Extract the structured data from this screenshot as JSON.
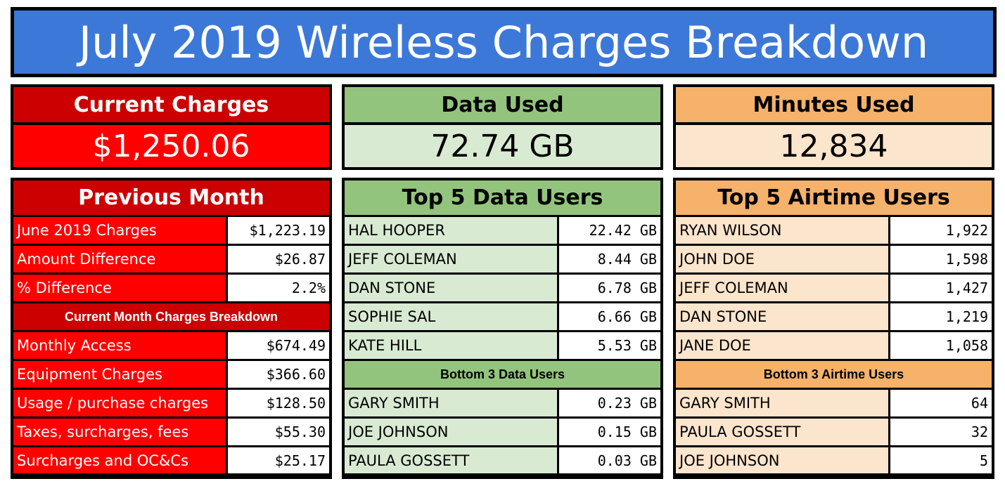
{
  "title": "July 2019 Wireless Charges Breakdown",
  "colors": {
    "title_bg": "#3c78d8",
    "red_header": "#cc0000",
    "red_value": "#ff0000",
    "green_header": "#93c47d",
    "green_value": "#d9ead3",
    "orange_header": "#f6b26b",
    "orange_value": "#fce5cd"
  },
  "kpis": {
    "current_charges": {
      "label": "Current Charges",
      "value": "$1,250.06"
    },
    "data_used": {
      "label": "Data Used",
      "value": "72.74 GB"
    },
    "minutes_used": {
      "label": "Minutes Used",
      "value": "12,834"
    }
  },
  "previous_month": {
    "title": "Previous Month",
    "rows": [
      {
        "label": "June 2019 Charges",
        "value": "$1,223.19"
      },
      {
        "label": "Amount Difference",
        "value": "$26.87"
      },
      {
        "label": "% Difference",
        "value": "2.2%"
      }
    ],
    "breakdown_title": "Current Month Charges Breakdown",
    "breakdown": [
      {
        "label": "Monthly Access",
        "value": "$674.49"
      },
      {
        "label": "Equipment Charges",
        "value": "$366.60"
      },
      {
        "label": "Usage / purchase charges",
        "value": "$128.50"
      },
      {
        "label": "Taxes, surcharges, fees",
        "value": "$55.30"
      },
      {
        "label": "Surcharges and OC&Cs",
        "value": "$25.17"
      }
    ]
  },
  "top_data": {
    "title": "Top 5 Data Users",
    "rows": [
      {
        "name": "HAL HOOPER",
        "value": "22.42 GB"
      },
      {
        "name": "JEFF COLEMAN",
        "value": "8.44 GB"
      },
      {
        "name": "DAN STONE",
        "value": "6.78 GB"
      },
      {
        "name": "SOPHIE SAL",
        "value": "6.66 GB"
      },
      {
        "name": "KATE HILL",
        "value": "5.53 GB"
      }
    ],
    "bottom_title": "Bottom 3 Data Users",
    "bottom": [
      {
        "name": "GARY SMITH",
        "value": "0.23 GB"
      },
      {
        "name": "JOE JOHNSON",
        "value": "0.15 GB"
      },
      {
        "name": "PAULA GOSSETT",
        "value": "0.03 GB"
      }
    ]
  },
  "top_airtime": {
    "title": "Top 5 Airtime Users",
    "rows": [
      {
        "name": "RYAN WILSON",
        "value": "1,922"
      },
      {
        "name": "JOHN DOE",
        "value": "1,598"
      },
      {
        "name": "JEFF COLEMAN",
        "value": "1,427"
      },
      {
        "name": "DAN STONE",
        "value": "1,219"
      },
      {
        "name": "JANE DOE",
        "value": "1,058"
      }
    ],
    "bottom_title": "Bottom 3 Airtime Users",
    "bottom": [
      {
        "name": "GARY SMITH",
        "value": "64"
      },
      {
        "name": "PAULA GOSSETT",
        "value": "32"
      },
      {
        "name": "JOE JOHNSON",
        "value": "5"
      }
    ]
  }
}
